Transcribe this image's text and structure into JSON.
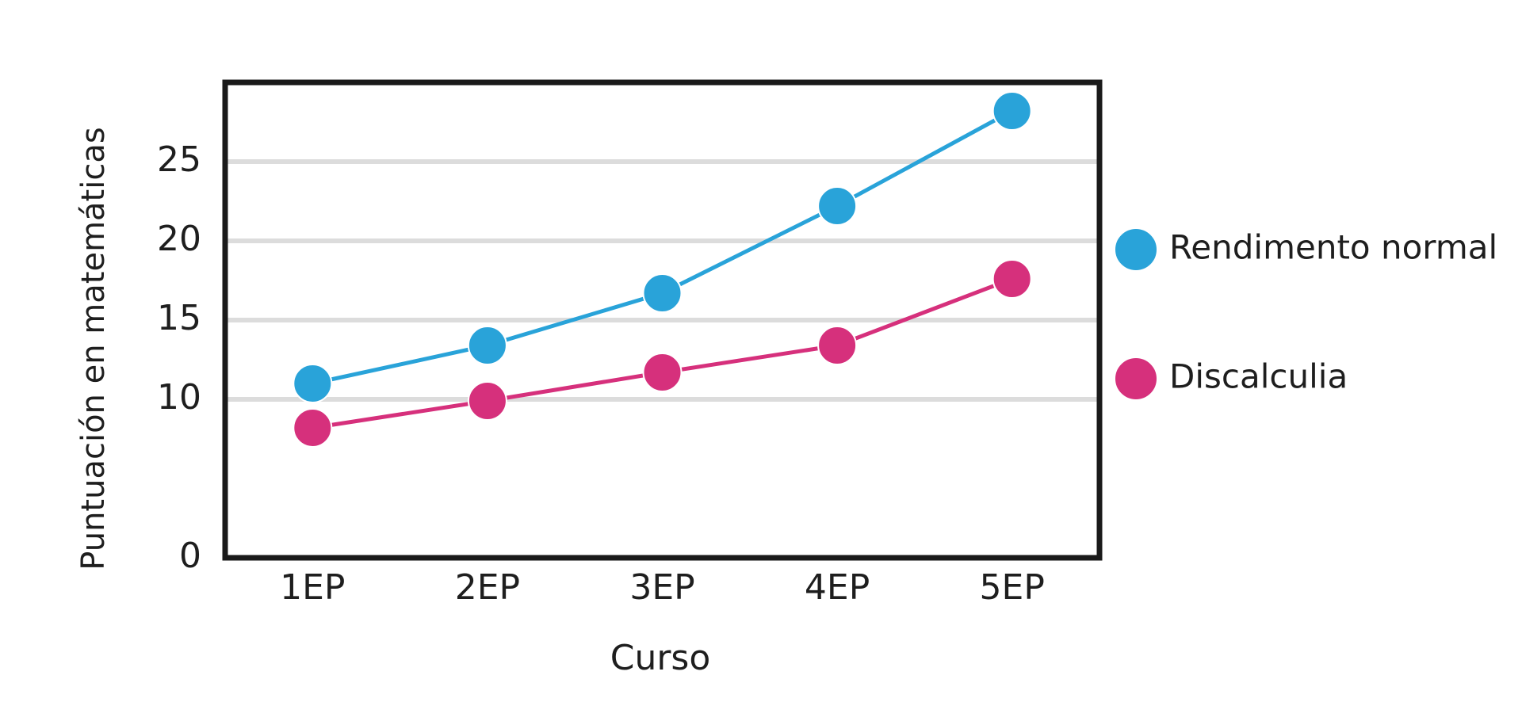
{
  "chart_data": {
    "type": "line",
    "x_label": "Curso",
    "y_label": "Puntuación en matemáticas",
    "categories": [
      "1EP",
      "2EP",
      "3EP",
      "4EP",
      "5EP"
    ],
    "series": [
      {
        "name": "Rendimento normal",
        "color": "#29a3d9",
        "values": [
          11.0,
          13.4,
          16.7,
          22.2,
          28.2
        ]
      },
      {
        "name": "Discalculia",
        "color": "#d6307c",
        "values": [
          8.2,
          9.9,
          11.7,
          13.4,
          17.6
        ]
      }
    ],
    "ylim": [
      0,
      30
    ],
    "yticks": [
      0,
      10,
      15,
      20,
      25
    ],
    "grid": true,
    "legend": "right"
  }
}
